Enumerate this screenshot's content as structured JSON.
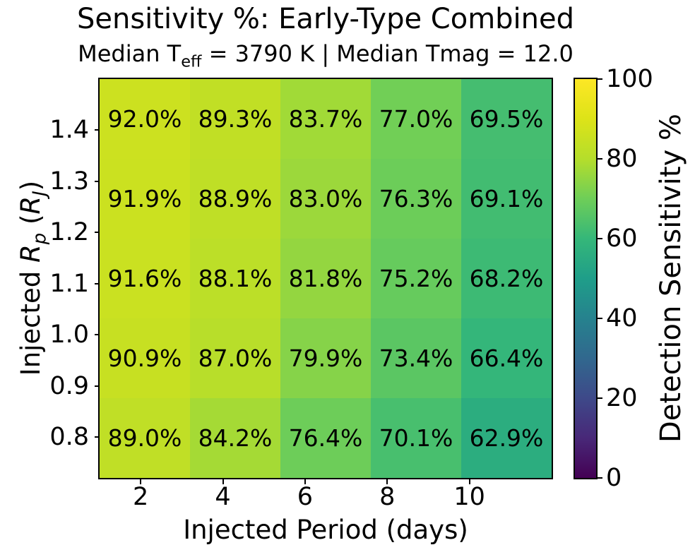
{
  "chart_data": {
    "type": "heatmap",
    "title": "Sensitivity %: Early-Type Combined",
    "subtitle": {
      "pre": "Median T",
      "sub": "eff",
      "post": " = 3790 K | Median Tmag = 12.0"
    },
    "xlabel": "Injected Period (days)",
    "ylabel": {
      "pre": "Injected ",
      "r1": "R",
      "sub1": "p",
      "mid": " (",
      "r2": "R",
      "sub2": "J",
      "post": ")"
    },
    "x_axis": {
      "range": [
        1,
        12
      ],
      "ticks": [
        {
          "value": 2,
          "label": "2"
        },
        {
          "value": 4,
          "label": "4"
        },
        {
          "value": 6,
          "label": "6"
        },
        {
          "value": 8,
          "label": "8"
        },
        {
          "value": 10,
          "label": "10"
        }
      ]
    },
    "y_axis": {
      "range": [
        0.72,
        1.5
      ],
      "ticks": [
        {
          "value": 1.4,
          "label": "1.4"
        },
        {
          "value": 1.3,
          "label": "1.3"
        },
        {
          "value": 1.2,
          "label": "1.2"
        },
        {
          "value": 1.1,
          "label": "1.1"
        },
        {
          "value": 1.0,
          "label": "1.0"
        },
        {
          "value": 0.9,
          "label": "0.9"
        },
        {
          "value": 0.8,
          "label": "0.8"
        }
      ]
    },
    "grid": {
      "n_rows": 5,
      "n_cols": 5,
      "gridlines": false
    },
    "rows": [
      {
        "cells": [
          {
            "value": 92.0,
            "label": "92.0%",
            "color": "#cce120"
          },
          {
            "value": 89.3,
            "label": "89.3%",
            "color": "#c1df25"
          },
          {
            "value": 83.7,
            "label": "83.7%",
            "color": "#a1da37"
          },
          {
            "value": 77.0,
            "label": "77.0%",
            "color": "#71cf56"
          },
          {
            "value": 69.5,
            "label": "69.5%",
            "color": "#45bd70"
          }
        ]
      },
      {
        "cells": [
          {
            "value": 91.9,
            "label": "91.9%",
            "color": "#cbe120"
          },
          {
            "value": 88.9,
            "label": "88.9%",
            "color": "#bfdf26"
          },
          {
            "value": 83.0,
            "label": "83.0%",
            "color": "#9cd83b"
          },
          {
            "value": 76.3,
            "label": "76.3%",
            "color": "#6ccd59"
          },
          {
            "value": 69.1,
            "label": "69.1%",
            "color": "#42bc71"
          }
        ]
      },
      {
        "cells": [
          {
            "value": 91.6,
            "label": "91.6%",
            "color": "#cae121"
          },
          {
            "value": 88.1,
            "label": "88.1%",
            "color": "#bcdf28"
          },
          {
            "value": 81.8,
            "label": "81.8%",
            "color": "#94d640"
          },
          {
            "value": 75.2,
            "label": "75.2%",
            "color": "#66cb5d"
          },
          {
            "value": 68.2,
            "label": "68.2%",
            "color": "#3dba74"
          }
        ]
      },
      {
        "cells": [
          {
            "value": 90.9,
            "label": "90.9%",
            "color": "#c7e022"
          },
          {
            "value": 87.0,
            "label": "87.0%",
            "color": "#b8de2a"
          },
          {
            "value": 79.9,
            "label": "79.9%",
            "color": "#86d349"
          },
          {
            "value": 73.4,
            "label": "73.4%",
            "color": "#5bc663"
          },
          {
            "value": 66.4,
            "label": "66.4%",
            "color": "#34b67a"
          }
        ]
      },
      {
        "cells": [
          {
            "value": 89.0,
            "label": "89.0%",
            "color": "#c0df26"
          },
          {
            "value": 84.2,
            "label": "84.2%",
            "color": "#a5da35"
          },
          {
            "value": 76.4,
            "label": "76.4%",
            "color": "#6dcd59"
          },
          {
            "value": 70.1,
            "label": "70.1%",
            "color": "#48bf6e"
          },
          {
            "value": 62.9,
            "label": "62.9%",
            "color": "#2cad7f"
          }
        ]
      }
    ],
    "colorbar": {
      "label": "Detection Sensitivity %",
      "colormap": "viridis",
      "range": [
        0,
        100
      ],
      "ticks": [
        {
          "value": 100,
          "label": "100"
        },
        {
          "value": 80,
          "label": "80"
        },
        {
          "value": 60,
          "label": "60"
        },
        {
          "value": 40,
          "label": "40"
        },
        {
          "value": 20,
          "label": "20"
        },
        {
          "value": 0,
          "label": "0"
        }
      ],
      "gradient_stops": [
        "#440154",
        "#482878",
        "#3e4989",
        "#31688e",
        "#26828e",
        "#1f9e89",
        "#35b779",
        "#6ece58",
        "#b5de2b",
        "#dde318",
        "#fde725"
      ]
    },
    "text_color": "#000000",
    "background_color": "#ffffff"
  }
}
